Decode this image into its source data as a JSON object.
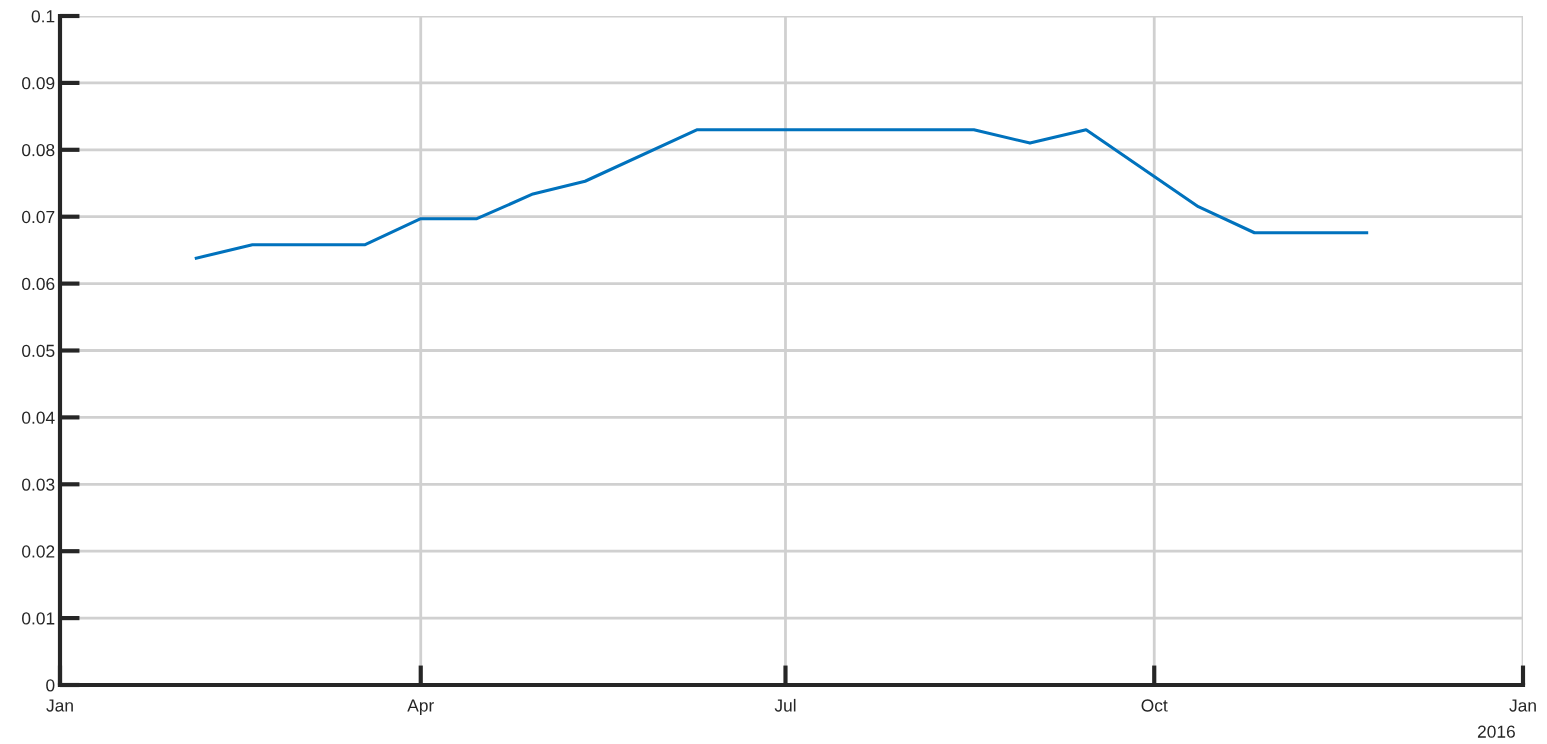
{
  "chart_data": {
    "type": "line",
    "x": [
      "2015-02-04",
      "2015-02-18",
      "2015-03-18",
      "2015-04-01",
      "2015-04-15",
      "2015-04-29",
      "2015-05-12",
      "2015-06-09",
      "2015-08-17",
      "2015-08-31",
      "2015-09-14",
      "2015-10-12",
      "2015-10-26",
      "2015-11-23"
    ],
    "series": [
      {
        "color": "#0072bd",
        "values": [
          0.0638,
          0.0658,
          0.0658,
          0.0697,
          0.0697,
          0.0734,
          0.0753,
          0.083,
          0.083,
          0.081,
          0.083,
          0.0715,
          0.0676,
          0.0676
        ]
      }
    ],
    "xlim": [
      "2015-01-01",
      "2016-01-01"
    ],
    "xticks": [
      {
        "value": "2015-01-01",
        "label": "Jan"
      },
      {
        "value": "2015-04-01",
        "label": "Apr"
      },
      {
        "value": "2015-07-01",
        "label": "Jul"
      },
      {
        "value": "2015-10-01",
        "label": "Oct"
      },
      {
        "value": "2016-01-01",
        "label": "Jan"
      }
    ],
    "ylim": [
      0,
      0.1
    ],
    "yticks": [
      0,
      0.01,
      0.02,
      0.03,
      0.04,
      0.05,
      0.06,
      0.07,
      0.08,
      0.09,
      0.1
    ],
    "annotations": [
      "2016"
    ],
    "grid": true,
    "marker": "none",
    "line_style": "solid"
  }
}
